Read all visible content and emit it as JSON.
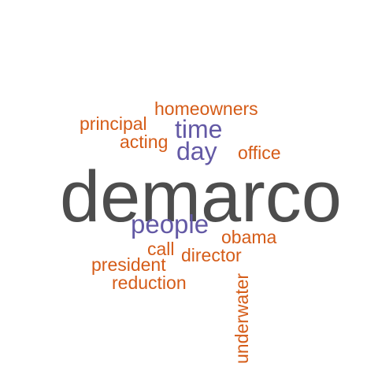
{
  "colors": {
    "dark": "#4d4d4d",
    "purple": "#6359a5",
    "orange": "#d55c18"
  },
  "words": {
    "demarco": "demarco",
    "people": "people",
    "time": "time",
    "day": "day",
    "homeowners": "homeowners",
    "principal": "principal",
    "acting": "acting",
    "office": "office",
    "obama": "obama",
    "call": "call",
    "director": "director",
    "president": "president",
    "reduction": "reduction",
    "underwater": "underwater"
  },
  "word_colors": {
    "demarco": "dark",
    "people": "purple",
    "time": "purple",
    "day": "purple",
    "homeowners": "orange",
    "principal": "orange",
    "acting": "orange",
    "office": "orange",
    "obama": "orange",
    "call": "orange",
    "director": "orange",
    "president": "orange",
    "reduction": "orange",
    "underwater": "orange"
  }
}
